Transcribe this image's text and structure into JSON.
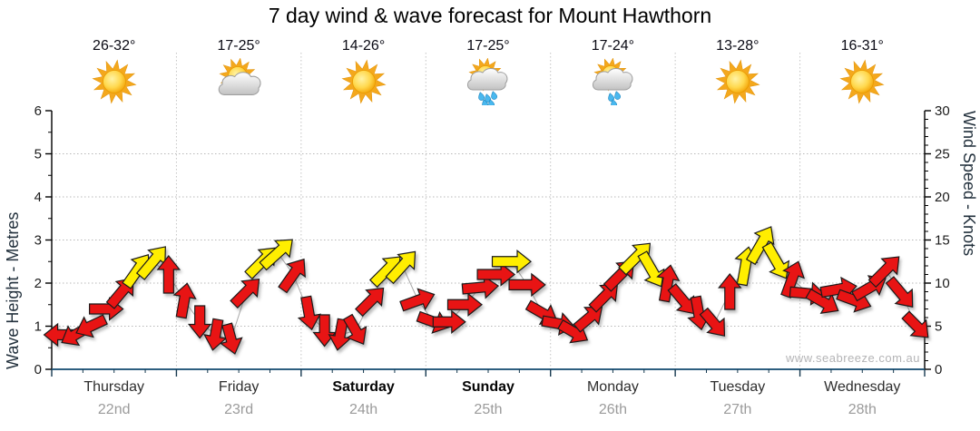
{
  "title": "7 day wind & wave forecast for Mount Hawthorn",
  "watermark": "www.seabreeze.com.au",
  "chart_data": {
    "type": "wind-arrows-forecast",
    "title": "7 day wind & wave forecast for Mount Hawthorn",
    "days": [
      {
        "name": "Thursday",
        "date": "22nd",
        "temp": "26-32°",
        "icon": "sunny",
        "bold": false
      },
      {
        "name": "Friday",
        "date": "23rd",
        "temp": "17-25°",
        "icon": "partly-cloudy",
        "bold": false
      },
      {
        "name": "Saturday",
        "date": "24th",
        "temp": "14-26°",
        "icon": "sunny",
        "bold": true
      },
      {
        "name": "Sunday",
        "date": "25th",
        "temp": "17-25°",
        "icon": "showers",
        "bold": true
      },
      {
        "name": "Monday",
        "date": "26th",
        "temp": "17-24°",
        "icon": "light-showers",
        "bold": false
      },
      {
        "name": "Tuesday",
        "date": "27th",
        "temp": "13-28°",
        "icon": "sunny",
        "bold": false
      },
      {
        "name": "Wednesday",
        "date": "28th",
        "temp": "16-31°",
        "icon": "sunny",
        "bold": false
      }
    ],
    "y_left": {
      "label": "Wave Height - Metres",
      "min": 0,
      "max": 6,
      "ticks": [
        0,
        1,
        2,
        3,
        4,
        5,
        6
      ],
      "minor_step": 0.5
    },
    "y_right": {
      "label": "Wind Speed - Knots",
      "min": 0,
      "max": 30,
      "ticks": [
        0,
        5,
        10,
        15,
        20,
        25,
        30
      ],
      "minor_step": 1
    },
    "points_per_day": 8,
    "arrows": [
      {
        "kn": 4.0,
        "dir": 180,
        "c": "r"
      },
      {
        "kn": 4.0,
        "dir": 210,
        "c": "r"
      },
      {
        "kn": 5.0,
        "dir": 205,
        "c": "r"
      },
      {
        "kn": 7.0,
        "dir": 0,
        "c": "r"
      },
      {
        "kn": 9.0,
        "dir": 50,
        "c": "r"
      },
      {
        "kn": 11.5,
        "dir": 55,
        "c": "y"
      },
      {
        "kn": 12.5,
        "dir": 50,
        "c": "y"
      },
      {
        "kn": 11.0,
        "dir": 90,
        "c": "r"
      },
      {
        "kn": 8.0,
        "dir": 80,
        "c": "r"
      },
      {
        "kn": 5.5,
        "dir": 270,
        "c": "r"
      },
      {
        "kn": 4.0,
        "dir": 260,
        "c": "r"
      },
      {
        "kn": 3.5,
        "dir": 285,
        "c": "r"
      },
      {
        "kn": 9.0,
        "dir": 45,
        "c": "r"
      },
      {
        "kn": 12.5,
        "dir": 45,
        "c": "y"
      },
      {
        "kn": 13.5,
        "dir": 42,
        "c": "y"
      },
      {
        "kn": 11.0,
        "dir": 55,
        "c": "r"
      },
      {
        "kn": 6.5,
        "dir": 280,
        "c": "r"
      },
      {
        "kn": 4.5,
        "dir": 270,
        "c": "r"
      },
      {
        "kn": 4.0,
        "dir": 260,
        "c": "r"
      },
      {
        "kn": 4.5,
        "dir": 300,
        "c": "r"
      },
      {
        "kn": 8.0,
        "dir": 45,
        "c": "r"
      },
      {
        "kn": 11.5,
        "dir": 45,
        "c": "y"
      },
      {
        "kn": 12.0,
        "dir": 48,
        "c": "y"
      },
      {
        "kn": 8.0,
        "dir": 20,
        "c": "r"
      },
      {
        "kn": 5.5,
        "dir": 340,
        "c": "r"
      },
      {
        "kn": 5.5,
        "dir": 0,
        "c": "r"
      },
      {
        "kn": 7.5,
        "dir": 0,
        "c": "r"
      },
      {
        "kn": 9.5,
        "dir": 5,
        "c": "r"
      },
      {
        "kn": 11.0,
        "dir": 0,
        "c": "r"
      },
      {
        "kn": 12.5,
        "dir": 0,
        "c": "y"
      },
      {
        "kn": 9.8,
        "dir": 0,
        "c": "r"
      },
      {
        "kn": 6.5,
        "dir": 330,
        "c": "r"
      },
      {
        "kn": 5.3,
        "dir": 350,
        "c": "r"
      },
      {
        "kn": 4.3,
        "dir": 330,
        "c": "r"
      },
      {
        "kn": 6.0,
        "dir": 40,
        "c": "r"
      },
      {
        "kn": 8.5,
        "dir": 45,
        "c": "r"
      },
      {
        "kn": 11.0,
        "dir": 45,
        "c": "r"
      },
      {
        "kn": 13.0,
        "dir": 45,
        "c": "y"
      },
      {
        "kn": 11.5,
        "dir": 300,
        "c": "y"
      },
      {
        "kn": 10.0,
        "dir": 80,
        "c": "r"
      },
      {
        "kn": 8.0,
        "dir": 310,
        "c": "r"
      },
      {
        "kn": 6.5,
        "dir": 280,
        "c": "r"
      },
      {
        "kn": 5.3,
        "dir": 310,
        "c": "r"
      },
      {
        "kn": 9.0,
        "dir": 90,
        "c": "r"
      },
      {
        "kn": 12.0,
        "dir": 80,
        "c": "y"
      },
      {
        "kn": 14.5,
        "dir": 60,
        "c": "y"
      },
      {
        "kn": 12.5,
        "dir": 300,
        "c": "y"
      },
      {
        "kn": 10.5,
        "dir": 70,
        "c": "r"
      },
      {
        "kn": 8.8,
        "dir": 355,
        "c": "r"
      },
      {
        "kn": 7.8,
        "dir": 330,
        "c": "r"
      },
      {
        "kn": 9.3,
        "dir": 10,
        "c": "r"
      },
      {
        "kn": 8.0,
        "dir": 340,
        "c": "r"
      },
      {
        "kn": 9.5,
        "dir": 30,
        "c": "r"
      },
      {
        "kn": 11.5,
        "dir": 45,
        "c": "r"
      },
      {
        "kn": 8.8,
        "dir": 310,
        "c": "r"
      },
      {
        "kn": 5.0,
        "dir": 315,
        "c": "r"
      }
    ],
    "colors": {
      "arrow_red": "#e81414",
      "arrow_yellow": "#ffee00",
      "arrow_outline": "#1a1a1a",
      "grid": "#b8b8b8",
      "day_divider": "#c4c4c4",
      "spine": "#000000",
      "x_axis_line": "#2e5f80",
      "x_tick": "#16394f",
      "tick_label": "#1b1b1b",
      "connector": "#a9a9a9",
      "date_label": "#9b9b9b",
      "watermark": "#b4b4b6"
    }
  }
}
